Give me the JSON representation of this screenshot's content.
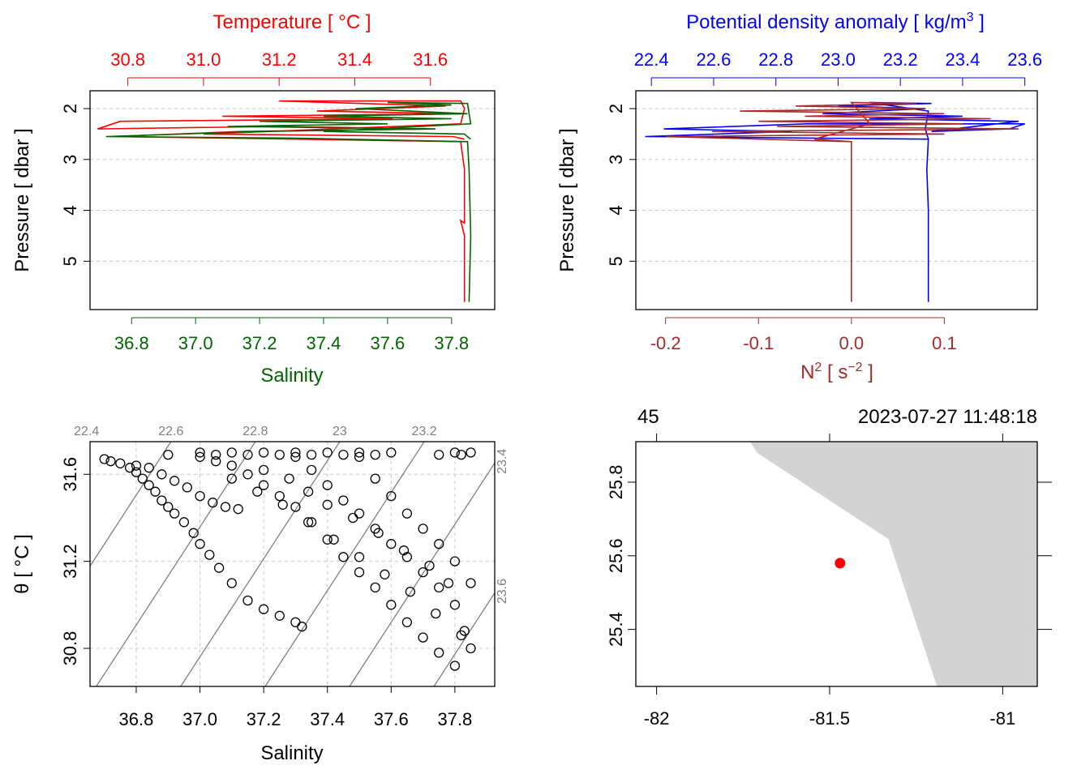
{
  "chart_data": [
    {
      "type": "line",
      "panel": "profile-temperature-salinity",
      "top_axis_title": "Temperature [ °C ]",
      "top_axis_color": "#ff0000",
      "top_ticks": [
        "30.8",
        "31.0",
        "31.2",
        "31.4",
        "31.6"
      ],
      "top_range": [
        30.7,
        31.77
      ],
      "bottom_axis_title": "Salinity",
      "bottom_axis_color": "#006400",
      "bottom_ticks": [
        "36.8",
        "37.0",
        "37.2",
        "37.4",
        "37.6",
        "37.8"
      ],
      "bottom_range": [
        36.67,
        37.935
      ],
      "ylabel": "Pressure [ dbar ]",
      "yticks": [
        "2",
        "3",
        "4",
        "5"
      ],
      "ylim": [
        5.95,
        1.65
      ],
      "series": [
        {
          "name": "temperature",
          "color": "#ff0000",
          "points": [
            [
              31.69,
              5.8
            ],
            [
              31.69,
              4.5
            ],
            [
              31.68,
              4.2
            ],
            [
              31.69,
              4.25
            ],
            [
              31.69,
              3.2
            ],
            [
              31.68,
              2.65
            ],
            [
              31.25,
              2.6
            ],
            [
              30.76,
              2.55
            ],
            [
              31.1,
              2.45
            ],
            [
              31.6,
              2.4
            ],
            [
              31.2,
              2.35
            ],
            [
              30.72,
              2.4
            ],
            [
              30.78,
              2.25
            ],
            [
              31.5,
              2.2
            ],
            [
              31.05,
              2.15
            ],
            [
              31.68,
              2.1
            ],
            [
              31.3,
              2.05
            ],
            [
              31.64,
              1.95
            ],
            [
              31.2,
              1.85
            ],
            [
              31.68,
              1.85
            ],
            [
              31.69,
              2.0
            ],
            [
              31.68,
              2.3
            ],
            [
              31.0,
              2.5
            ],
            [
              31.66,
              2.55
            ],
            [
              31.69,
              2.6
            ]
          ]
        },
        {
          "name": "salinity",
          "color": "#006400",
          "points": [
            [
              37.855,
              5.8
            ],
            [
              37.86,
              4.5
            ],
            [
              37.855,
              3.2
            ],
            [
              37.85,
              2.65
            ],
            [
              37.3,
              2.58
            ],
            [
              36.72,
              2.55
            ],
            [
              37.2,
              2.45
            ],
            [
              37.75,
              2.4
            ],
            [
              37.1,
              2.35
            ],
            [
              37.6,
              2.3
            ],
            [
              37.2,
              2.25
            ],
            [
              37.8,
              2.2
            ],
            [
              37.4,
              2.15
            ],
            [
              37.85,
              2.1
            ],
            [
              37.5,
              2.0
            ],
            [
              37.8,
              1.93
            ],
            [
              37.6,
              1.88
            ],
            [
              37.85,
              1.9
            ],
            [
              37.86,
              2.3
            ],
            [
              37.4,
              2.45
            ],
            [
              37.84,
              2.5
            ],
            [
              37.86,
              2.6
            ]
          ]
        }
      ]
    },
    {
      "type": "line",
      "panel": "profile-density-n2",
      "top_axis_title": "Potential density anomaly [ kg/m",
      "top_axis_superscript": "3",
      "top_axis_title_end": " ]",
      "top_axis_color": "#0000ff",
      "top_ticks": [
        "22.4",
        "22.6",
        "22.8",
        "23.0",
        "23.2",
        "23.4",
        "23.6"
      ],
      "top_range": [
        22.35,
        23.64
      ],
      "bottom_axis_title": "N",
      "bottom_axis_superscript": "2",
      "bottom_axis_title_mid": " [ s",
      "bottom_axis_superscript_2": "−2",
      "bottom_axis_title_end": " ]",
      "bottom_axis_color": "#a52a2a",
      "bottom_ticks": [
        "-0.2",
        "-0.1",
        "0.0",
        "0.1"
      ],
      "bottom_range": [
        -0.232,
        0.2
      ],
      "ylabel": "Pressure [ dbar ]",
      "yticks": [
        "2",
        "3",
        "4",
        "5"
      ],
      "ylim": [
        5.95,
        1.65
      ],
      "series": [
        {
          "name": "density",
          "color": "#0000ff",
          "points": [
            [
              23.29,
              5.8
            ],
            [
              23.29,
              4.0
            ],
            [
              23.285,
              3.2
            ],
            [
              23.29,
              2.6
            ],
            [
              22.38,
              2.55
            ],
            [
              22.85,
              2.45
            ],
            [
              22.44,
              2.4
            ],
            [
              22.9,
              2.3
            ],
            [
              23.6,
              2.3
            ],
            [
              23.55,
              2.4
            ],
            [
              23.3,
              2.45
            ],
            [
              23.58,
              2.25
            ],
            [
              23.1,
              2.2
            ],
            [
              23.4,
              2.15
            ],
            [
              22.95,
              2.1
            ],
            [
              23.28,
              2.0
            ],
            [
              23.0,
              1.95
            ],
            [
              23.3,
              1.9
            ],
            [
              23.1,
              1.88
            ],
            [
              23.29,
              2.05
            ],
            [
              23.28,
              2.4
            ],
            [
              23.29,
              2.6
            ]
          ]
        },
        {
          "name": "N2",
          "color": "#a52a2a",
          "points": [
            [
              0.0,
              5.8
            ],
            [
              0.0,
              2.65
            ],
            [
              -0.2,
              2.55
            ],
            [
              0.1,
              2.5
            ],
            [
              -0.15,
              2.45
            ],
            [
              0.18,
              2.4
            ],
            [
              -0.08,
              2.35
            ],
            [
              0.12,
              2.3
            ],
            [
              -0.1,
              2.25
            ],
            [
              0.15,
              2.2
            ],
            [
              -0.05,
              2.15
            ],
            [
              0.1,
              2.1
            ],
            [
              -0.12,
              2.05
            ],
            [
              0.08,
              2.0
            ],
            [
              -0.06,
              1.95
            ],
            [
              0.07,
              1.9
            ],
            [
              0.0,
              1.88
            ],
            [
              0.02,
              2.3
            ],
            [
              -0.04,
              2.6
            ],
            [
              0.0,
              2.65
            ]
          ]
        }
      ]
    },
    {
      "type": "scatter",
      "panel": "ts-diagram",
      "xlabel": "Salinity",
      "ylabel": "θ [ °C ]",
      "xticks": [
        "36.8",
        "37.0",
        "37.2",
        "37.4",
        "37.6",
        "37.8"
      ],
      "yticks": [
        "30.8",
        "31.2",
        "31.6"
      ],
      "xlim": [
        36.655,
        37.925
      ],
      "ylim": [
        30.625,
        31.75
      ],
      "isopycnal_labels": [
        "22.4",
        "22.6",
        "22.8",
        "23",
        "23.2",
        "23.4",
        "23.6"
      ],
      "isopycnal_color": "#7f7f7f",
      "points": [
        [
          36.7,
          31.67
        ],
        [
          36.72,
          31.66
        ],
        [
          36.75,
          31.65
        ],
        [
          36.78,
          31.63
        ],
        [
          36.8,
          31.61
        ],
        [
          36.82,
          31.58
        ],
        [
          36.84,
          31.55
        ],
        [
          36.86,
          31.52
        ],
        [
          36.88,
          31.48
        ],
        [
          36.9,
          31.45
        ],
        [
          36.92,
          31.42
        ],
        [
          36.95,
          31.38
        ],
        [
          36.98,
          31.33
        ],
        [
          37.0,
          31.28
        ],
        [
          37.03,
          31.23
        ],
        [
          37.06,
          31.17
        ],
        [
          37.1,
          31.1
        ],
        [
          37.15,
          31.02
        ],
        [
          37.2,
          30.98
        ],
        [
          37.25,
          30.95
        ],
        [
          37.3,
          30.92
        ],
        [
          37.32,
          30.9
        ],
        [
          36.8,
          31.64
        ],
        [
          36.84,
          31.63
        ],
        [
          36.88,
          31.6
        ],
        [
          36.92,
          31.57
        ],
        [
          36.96,
          31.54
        ],
        [
          37.0,
          31.5
        ],
        [
          37.04,
          31.47
        ],
        [
          37.08,
          31.45
        ],
        [
          37.12,
          31.44
        ],
        [
          37.0,
          31.68
        ],
        [
          37.05,
          31.66
        ],
        [
          37.1,
          31.64
        ],
        [
          37.15,
          31.6
        ],
        [
          37.2,
          31.55
        ],
        [
          37.25,
          31.5
        ],
        [
          37.3,
          31.45
        ],
        [
          37.35,
          31.38
        ],
        [
          37.4,
          31.3
        ],
        [
          37.45,
          31.22
        ],
        [
          37.5,
          31.15
        ],
        [
          37.55,
          31.08
        ],
        [
          37.6,
          31.0
        ],
        [
          37.65,
          30.92
        ],
        [
          37.7,
          30.85
        ],
        [
          37.75,
          30.78
        ],
        [
          37.8,
          30.72
        ],
        [
          37.3,
          31.68
        ],
        [
          37.35,
          31.62
        ],
        [
          37.4,
          31.55
        ],
        [
          37.45,
          31.48
        ],
        [
          37.5,
          31.42
        ],
        [
          37.55,
          31.35
        ],
        [
          37.6,
          31.28
        ],
        [
          37.65,
          31.22
        ],
        [
          37.7,
          31.15
        ],
        [
          37.75,
          31.08
        ],
        [
          37.8,
          31.0
        ],
        [
          37.83,
          30.88
        ],
        [
          37.85,
          30.8
        ],
        [
          37.5,
          31.68
        ],
        [
          37.55,
          31.58
        ],
        [
          37.6,
          31.5
        ],
        [
          37.65,
          31.42
        ],
        [
          37.7,
          31.35
        ],
        [
          37.75,
          31.28
        ],
        [
          37.8,
          31.2
        ],
        [
          37.85,
          31.1
        ],
        [
          37.0,
          31.7
        ],
        [
          37.1,
          31.7
        ],
        [
          37.2,
          31.7
        ],
        [
          37.3,
          31.7
        ],
        [
          37.4,
          31.7
        ],
        [
          37.5,
          31.7
        ],
        [
          37.6,
          31.7
        ],
        [
          37.8,
          31.7
        ],
        [
          37.85,
          31.7
        ],
        [
          36.9,
          31.69
        ],
        [
          37.05,
          31.69
        ],
        [
          37.15,
          31.69
        ],
        [
          37.25,
          31.69
        ],
        [
          37.35,
          31.69
        ],
        [
          37.45,
          31.69
        ],
        [
          37.55,
          31.69
        ],
        [
          37.75,
          31.69
        ],
        [
          37.82,
          31.69
        ],
        [
          37.2,
          31.62
        ],
        [
          37.28,
          31.58
        ],
        [
          37.34,
          31.52
        ],
        [
          37.4,
          31.46
        ],
        [
          37.48,
          31.4
        ],
        [
          37.56,
          31.33
        ],
        [
          37.64,
          31.25
        ],
        [
          37.72,
          31.18
        ],
        [
          37.78,
          31.1
        ],
        [
          37.1,
          31.58
        ],
        [
          37.18,
          31.52
        ],
        [
          37.26,
          31.46
        ],
        [
          37.34,
          31.38
        ],
        [
          37.42,
          31.3
        ],
        [
          37.5,
          31.22
        ],
        [
          37.58,
          31.14
        ],
        [
          37.66,
          31.06
        ],
        [
          37.74,
          30.96
        ],
        [
          37.82,
          30.86
        ]
      ]
    },
    {
      "type": "scatter",
      "panel": "station-map",
      "xticks": [
        "-82",
        "-81.5",
        "-81"
      ],
      "yticks": [
        "25.4",
        "25.6",
        "25.8"
      ],
      "xlim": [
        -82.06,
        -80.9
      ],
      "ylim": [
        25.245,
        25.91
      ],
      "top_left_label": "45",
      "top_right_label": "2023-07-27 11:48:18",
      "station": {
        "lon": -81.47,
        "lat": 25.58,
        "color": "#ff0000"
      },
      "land_color": "#d3d3d3",
      "coastline": [
        [
          -81.73,
          25.91
        ],
        [
          -81.71,
          25.88
        ],
        [
          -81.33,
          25.645
        ],
        [
          -81.19,
          25.245
        ]
      ]
    }
  ]
}
